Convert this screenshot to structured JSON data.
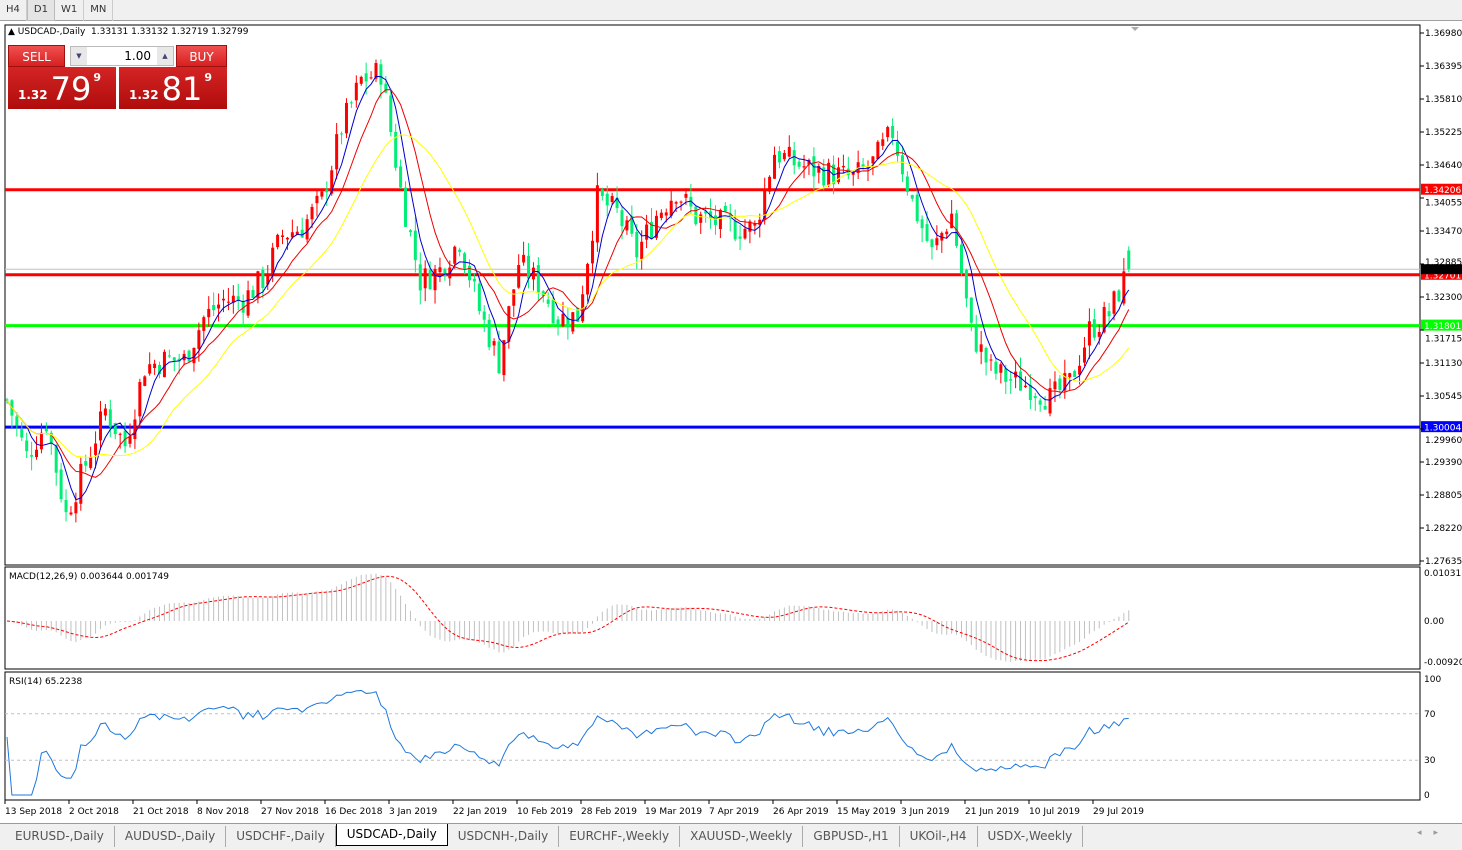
{
  "timeframes": [
    "H4",
    "D1",
    "W1",
    "MN"
  ],
  "active_timeframe": "D1",
  "chart": {
    "symbol": "USDCAD-,Daily",
    "ohlc": "1.33131 1.33132 1.32719 1.32799"
  },
  "trade_panel": {
    "sell_label": "SELL",
    "buy_label": "BUY",
    "lot": "1.00",
    "sell_prefix": "1.32",
    "sell_big": "79",
    "sell_pip": "9",
    "buy_prefix": "1.32",
    "buy_big": "81",
    "buy_pip": "9"
  },
  "price_axis": [
    "1.36980",
    "1.36395",
    "1.35810",
    "1.35225",
    "1.34640",
    "1.34055",
    "1.33470",
    "1.32885",
    "1.32300",
    "1.31715",
    "1.31130",
    "1.30545",
    "1.29960",
    "1.29390",
    "1.28805",
    "1.28220",
    "1.27635"
  ],
  "levels": [
    {
      "price": 1.34206,
      "label": "1.34206",
      "color": "#ff0000"
    },
    {
      "price": 1.32701,
      "label": "1.32701",
      "color": "#ff0000"
    },
    {
      "price": 1.31801,
      "label": "1.31801",
      "color": "#00ff00"
    },
    {
      "price": 1.30004,
      "label": "1.30004",
      "color": "#0000ff"
    }
  ],
  "current_price": 1.32799,
  "colors": {
    "bull": "#ff0000",
    "bear": "#00ee76",
    "ma_fast": "#0000cc",
    "ma_mid": "#ee0000",
    "ma_slow": "#ffff00",
    "macd_hist": "#c0c0c0",
    "macd_signal": "#ff0000",
    "rsi": "#1e78dc"
  },
  "macd": {
    "label": "MACD(12,26,9) 0.003644 0.001749",
    "axis": [
      "0.010311",
      "0.00",
      "-0.009203"
    ]
  },
  "rsi": {
    "label": "RSI(14) 65.2238",
    "axis": [
      "100",
      "70",
      "30",
      "0"
    ]
  },
  "dates": [
    "13 Sep 2018",
    "2 Oct 2018",
    "21 Oct 2018",
    "8 Nov 2018",
    "27 Nov 2018",
    "16 Dec 2018",
    "3 Jan 2019",
    "22 Jan 2019",
    "10 Feb 2019",
    "28 Feb 2019",
    "19 Mar 2019",
    "7 Apr 2019",
    "26 Apr 2019",
    "15 May 2019",
    "3 Jun 2019",
    "21 Jun 2019",
    "10 Jul 2019",
    "29 Jul 2019"
  ],
  "chart_data": {
    "type": "candlestick",
    "symbol": "USDCAD",
    "timeframe": "Daily",
    "ylim": [
      1.27635,
      1.3698
    ],
    "approx_closes_every_4_bars": [
      1.30484,
      1.29493,
      1.30095,
      1.28449,
      1.29352,
      1.30307,
      1.29688,
      1.31068,
      1.31192,
      1.31192,
      1.31936,
      1.32254,
      1.32254,
      1.32626,
      1.33405,
      1.33546,
      1.34024,
      1.35299,
      1.36148,
      1.3629,
      1.34201,
      1.32591,
      1.32785,
      1.33316,
      1.32077,
      1.31157,
      1.32909,
      1.32555,
      1.31936,
      1.31971,
      1.3406,
      1.33794,
      1.33086,
      1.33759,
      1.34201,
      1.33723,
      1.33635,
      1.33529,
      1.33529,
      1.34874,
      1.34679,
      1.34555,
      1.34484,
      1.34414,
      1.34679,
      1.35228,
      1.33989,
      1.33086,
      1.33776,
      1.31688,
      1.31015,
      1.30838,
      1.30732,
      1.30502,
      1.30785,
      1.31723,
      1.32007,
      1.32799
    ]
  },
  "tabs": [
    "EURUSD-,Daily",
    "AUDUSD-,Daily",
    "USDCHF-,Daily",
    "USDCAD-,Daily",
    "USDCNH-,Daily",
    "EURCHF-,Weekly",
    "XAUUSD-,Weekly",
    "GBPUSD-,H1",
    "UKOil-,H4",
    "USDX-,Weekly"
  ],
  "active_tab": "USDCAD-,Daily"
}
